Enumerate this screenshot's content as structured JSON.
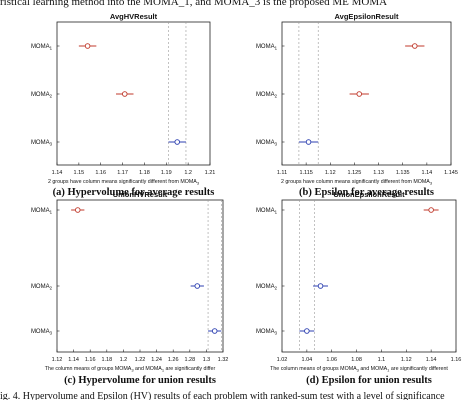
{
  "top_text": "ristical learning method into the MOMA_1, and MOMA_3 is the proposed ME MOMA",
  "bottom_text": "ig. 4. Hypervolume and Epsilon (HV) results of each problem with ranked-sum test with a level of significance",
  "panels": [
    {
      "id": "a",
      "title": "AvgHVResult",
      "caption": "(a) Hypervolume for average results",
      "note": "2 groups have column means significantly different from MOMA",
      "note_sub": "3",
      "groups": [
        {
          "name": "MOMA",
          "sub": "1"
        },
        {
          "name": "MOMA",
          "sub": "2"
        },
        {
          "name": "MOMA",
          "sub": "3"
        }
      ],
      "ticks": [
        "1.14",
        "1.15",
        "1.16",
        "1.17",
        "1.18",
        "1.19",
        "1.2",
        "1.21"
      ],
      "xlim": [
        1.14,
        1.21
      ],
      "estimates": [
        {
          "mean": 1.154,
          "low": 1.15,
          "high": 1.158,
          "color": "#c0392b"
        },
        {
          "mean": 1.171,
          "low": 1.167,
          "high": 1.175,
          "color": "#c0392b"
        },
        {
          "mean": 1.195,
          "low": 1.191,
          "high": 1.199,
          "color": "#2c3fb0"
        }
      ],
      "ref_lines": [
        1.191,
        1.199
      ]
    },
    {
      "id": "b",
      "title": "AvgEpsilonResult",
      "caption": "(b) Epsilon for average results",
      "note": "2 groups have column means significantly different from MOMA",
      "note_sub": "3",
      "groups": [
        {
          "name": "MOMA",
          "sub": "1"
        },
        {
          "name": "MOMA",
          "sub": "2"
        },
        {
          "name": "MOMA",
          "sub": "3"
        }
      ],
      "ticks": [
        "1.11",
        "1.115",
        "1.12",
        "1.125",
        "1.13",
        "1.135",
        "1.14",
        "1.145"
      ],
      "xlim": [
        1.11,
        1.145
      ],
      "estimates": [
        {
          "mean": 1.1375,
          "low": 1.1355,
          "high": 1.1395,
          "color": "#c0392b"
        },
        {
          "mean": 1.126,
          "low": 1.124,
          "high": 1.128,
          "color": "#c0392b"
        },
        {
          "mean": 1.1155,
          "low": 1.1135,
          "high": 1.1175,
          "color": "#2c3fb0"
        }
      ],
      "ref_lines": [
        1.1135,
        1.1175
      ]
    },
    {
      "id": "c",
      "title": "UnionHVResult",
      "caption": "(c) Hypervolume for union results",
      "note": "The column means of groups MOMA",
      "note_mid": " and MOMA",
      "note_end": " are significantly differ",
      "note_sub1": "3",
      "note_sub2": "1",
      "groups": [
        {
          "name": "MOMA",
          "sub": "1"
        },
        {
          "name": "MOMA",
          "sub": "2"
        },
        {
          "name": "MOMA",
          "sub": "3"
        }
      ],
      "ticks": [
        "1.12",
        "1.14",
        "1.16",
        "1.18",
        "1.2",
        "1.22",
        "1.24",
        "1.26",
        "1.28",
        "1.3",
        "1.32"
      ],
      "xlim": [
        1.12,
        1.32
      ],
      "estimates": [
        {
          "mean": 1.145,
          "low": 1.137,
          "high": 1.153,
          "color": "#c0392b"
        },
        {
          "mean": 1.289,
          "low": 1.281,
          "high": 1.297,
          "color": "#2c3fb0"
        },
        {
          "mean": 1.31,
          "low": 1.302,
          "high": 1.318,
          "color": "#2c3fb0"
        }
      ],
      "ref_lines": [
        1.302,
        1.318
      ]
    },
    {
      "id": "d",
      "title": "UnionEpsilonResult",
      "caption": "(d) Epsilon for union results",
      "note": "The column means of groups MOMA",
      "note_mid": " and MOMA",
      "note_end": " are significantly different",
      "note_sub1": "3",
      "note_sub2": "1",
      "groups": [
        {
          "name": "MOMA",
          "sub": "1"
        },
        {
          "name": "MOMA",
          "sub": "2"
        },
        {
          "name": "MOMA",
          "sub": "3"
        }
      ],
      "ticks": [
        "1.02",
        "1.04",
        "1.06",
        "1.08",
        "1.1",
        "1.12",
        "1.14",
        "1.16"
      ],
      "xlim": [
        1.02,
        1.16
      ],
      "estimates": [
        {
          "mean": 1.14,
          "low": 1.134,
          "high": 1.146,
          "color": "#c0392b"
        },
        {
          "mean": 1.051,
          "low": 1.045,
          "high": 1.057,
          "color": "#2c3fb0"
        },
        {
          "mean": 1.04,
          "low": 1.034,
          "high": 1.046,
          "color": "#2c3fb0"
        }
      ],
      "ref_lines": [
        1.034,
        1.046
      ]
    }
  ]
}
